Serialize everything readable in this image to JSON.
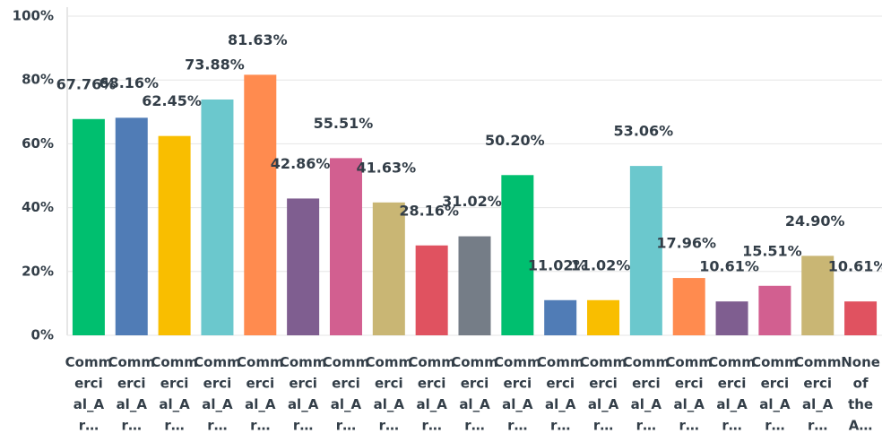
{
  "chart_data": {
    "type": "bar",
    "categories": [
      "Commercial_Ar…",
      "Commercial_Ar…",
      "Commercial_Ar…",
      "Commercial_Ar…",
      "Commercial_Ar…",
      "Commercial_Ar…",
      "Commercial_Ar…",
      "Commercial_Ar…",
      "Commercial_Ar…",
      "Commercial_Ar…",
      "Commercial_Ar…",
      "Commercial_Ar…",
      "Commercial_Ar…",
      "Commercial_Ar…",
      "Commercial_Ar…",
      "Commercial_Ar…",
      "Commercial_Ar…",
      "Commercial_Ar…",
      "None of the A…"
    ],
    "values": [
      67.76,
      68.16,
      62.45,
      73.88,
      81.63,
      42.86,
      55.51,
      41.63,
      28.16,
      31.02,
      50.2,
      11.02,
      11.02,
      53.06,
      17.96,
      10.61,
      15.51,
      24.9,
      10.61
    ],
    "value_labels": [
      "67.76%",
      "68.16%",
      "62.45%",
      "73.88%",
      "81.63%",
      "42.86%",
      "55.51%",
      "41.63%",
      "28.16%",
      "31.02%",
      "50.20%",
      "11.02%",
      "11.02%",
      "53.06%",
      "17.96%",
      "10.61%",
      "15.51%",
      "24.90%",
      "10.61%"
    ],
    "colors": [
      "#00bf6f",
      "#507cb6",
      "#f9be00",
      "#6bc8cd",
      "#ff8b4f",
      "#7f5e90",
      "#d25f90",
      "#c9b674",
      "#e05260",
      "#757d87",
      "#00bf6f",
      "#507cb6",
      "#f9be00",
      "#6bc8cd",
      "#ff8b4f",
      "#7f5e90",
      "#d25f90",
      "#c9b674",
      "#e05260"
    ],
    "ylim": [
      0,
      100
    ],
    "yticks": [
      {
        "value": 0,
        "label": "0%"
      },
      {
        "value": 20,
        "label": "20%"
      },
      {
        "value": 40,
        "label": "40%"
      },
      {
        "value": 60,
        "label": "60%"
      },
      {
        "value": 80,
        "label": "80%"
      },
      {
        "value": 100,
        "label": "100%"
      }
    ],
    "grid": true
  }
}
